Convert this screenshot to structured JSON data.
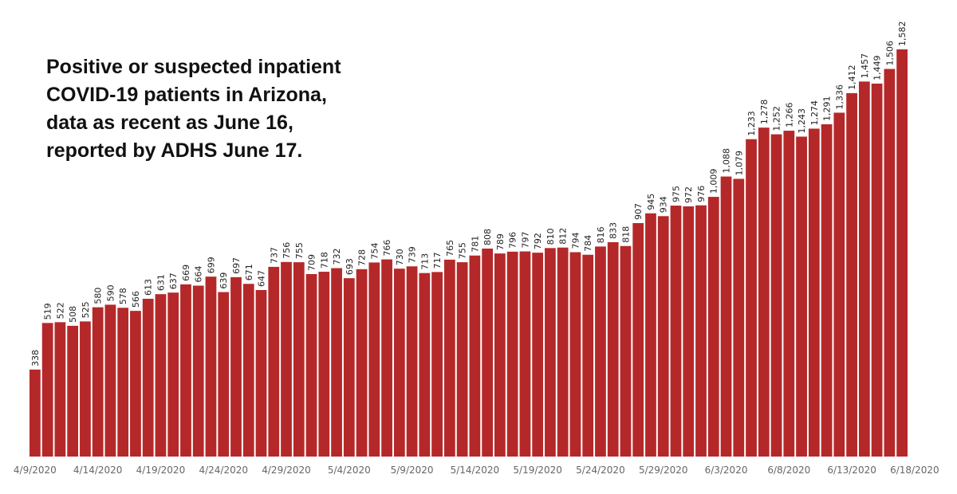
{
  "chart_data": {
    "type": "bar",
    "title_lines": [
      "Positive or suspected inpatient",
      "COVID-19 patients in Arizona,",
      "data as recent as June 16,",
      "reported by ADHS June 17."
    ],
    "color": "#b5282a",
    "x_tick_labels": [
      "4/9/2020",
      "4/14/2020",
      "4/19/2020",
      "4/24/2020",
      "4/29/2020",
      "5/4/2020",
      "5/9/2020",
      "5/14/2020",
      "5/19/2020",
      "5/24/2020",
      "5/29/2020",
      "6/3/2020",
      "6/8/2020",
      "6/13/2020",
      "6/18/2020"
    ],
    "x_tick_every": 5,
    "ylim": [
      0,
      1650
    ],
    "grid": false,
    "values": [
      338,
      519,
      522,
      508,
      525,
      580,
      590,
      578,
      566,
      613,
      631,
      637,
      669,
      664,
      699,
      639,
      697,
      671,
      647,
      737,
      756,
      755,
      709,
      718,
      732,
      693,
      728,
      754,
      766,
      730,
      739,
      713,
      717,
      765,
      755,
      781,
      808,
      789,
      796,
      797,
      792,
      810,
      812,
      794,
      784,
      816,
      833,
      818,
      907,
      945,
      934,
      975,
      972,
      976,
      1009,
      1088,
      1079,
      1233,
      1278,
      1252,
      1266,
      1243,
      1274,
      1291,
      1336,
      1412,
      1457,
      1449,
      1506,
      1582
    ],
    "labels": [
      "338",
      "519",
      "522",
      "508",
      "525",
      "580",
      "590",
      "578",
      "566",
      "613",
      "631",
      "637",
      "669",
      "664",
      "699",
      "639",
      "697",
      "671",
      "647",
      "737",
      "756",
      "755",
      "709",
      "718",
      "732",
      "693",
      "728",
      "754",
      "766",
      "730",
      "739",
      "713",
      "717",
      "765",
      "755",
      "781",
      "808",
      "789",
      "796",
      "797",
      "792",
      "810",
      "812",
      "794",
      "784",
      "816",
      "833",
      "818",
      "907",
      "945",
      "934",
      "975",
      "972",
      "976",
      "1,009",
      "1,088",
      "1,079",
      "1,233",
      "1,278",
      "1,252",
      "1,266",
      "1,243",
      "1,274",
      "1,291",
      "1,336",
      "1,412",
      "1,457",
      "1,449",
      "1,506",
      "1,582"
    ]
  }
}
